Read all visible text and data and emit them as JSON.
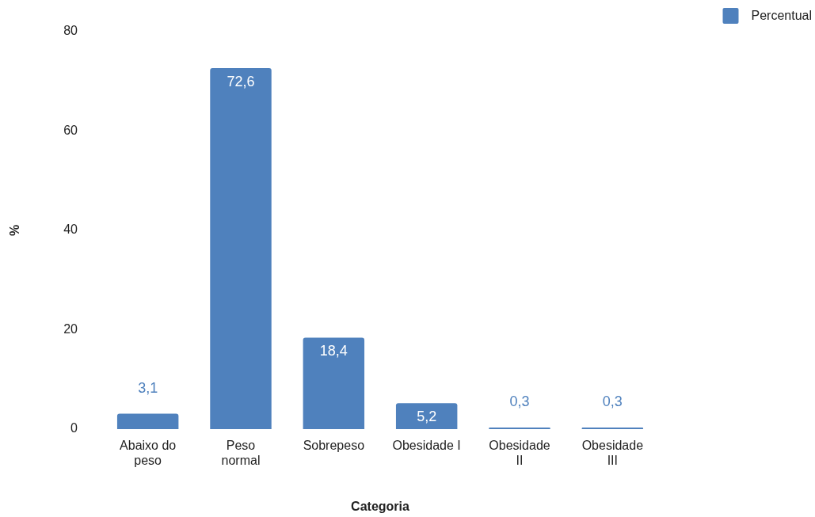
{
  "chart_data": {
    "type": "bar",
    "xlabel": "Categoria",
    "ylabel": "%",
    "categories": [
      "Abaixo do peso",
      "Peso normal",
      "Sobrepeso",
      "Obesidade I",
      "Obesidade II",
      "Obesidade III"
    ],
    "series": [
      {
        "name": "Percentual",
        "color": "#4f81bd",
        "values": [
          3.1,
          72.6,
          18.4,
          5.2,
          0.3,
          0.3
        ],
        "value_labels": [
          "3,1",
          "72,6",
          "18,4",
          "5,2",
          "0,3",
          "0,3"
        ]
      }
    ],
    "ylim": [
      0,
      80
    ],
    "yticks": [
      0,
      20,
      40,
      60,
      80
    ],
    "grid": false,
    "legend": "top right"
  }
}
